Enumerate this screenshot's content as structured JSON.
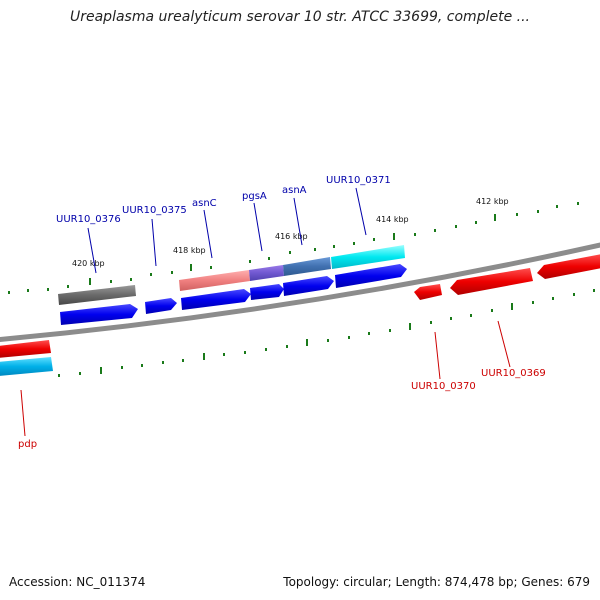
{
  "header": {
    "title": "Ureaplasma urealyticum serovar 10 str. ATCC 33699, complete ..."
  },
  "footer": {
    "accession": "Accession: NC_011374",
    "stats": "Topology: circular; Length: 874,478 bp; Genes: 679"
  },
  "scale_labels": [
    "420 kbp",
    "418 kbp",
    "416 kbp",
    "414 kbp",
    "412 kbp"
  ],
  "gene_labels": {
    "forward": [
      "UUR10_0376",
      "UUR10_0375",
      "asnC",
      "pgsA",
      "asnA",
      "UUR10_0371"
    ],
    "reverse": [
      "UUR10_0370",
      "UUR10_0369",
      "pdp"
    ]
  },
  "colors": {
    "forward_gene": "#0000ee",
    "reverse_gene": "#ee0000",
    "forward_label": "#0000aa",
    "reverse_label": "#cc0000",
    "tick": "#1a7a1a",
    "backbone": "#888888"
  }
}
